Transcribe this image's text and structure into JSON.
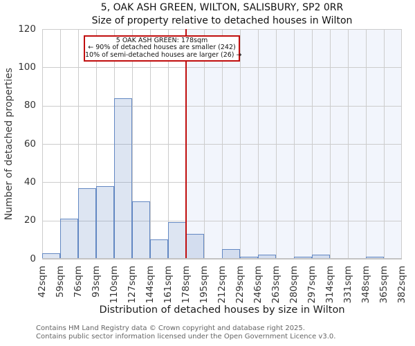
{
  "chart_data": {
    "type": "bar",
    "title": "5, OAK ASH GREEN, WILTON, SALISBURY, SP2 0RR",
    "subtitle": "Size of property relative to detached houses in Wilton",
    "xlabel": "Distribution of detached houses by size in Wilton",
    "ylabel": "Number of detached properties",
    "ylim": [
      0,
      120
    ],
    "yticks": [
      0,
      20,
      40,
      60,
      80,
      100,
      120
    ],
    "grid": true,
    "bin_edge_labels": [
      "42sqm",
      "59sqm",
      "76sqm",
      "93sqm",
      "110sqm",
      "127sqm",
      "144sqm",
      "161sqm",
      "178sqm",
      "195sqm",
      "212sqm",
      "229sqm",
      "246sqm",
      "263sqm",
      "280sqm",
      "297sqm",
      "314sqm",
      "331sqm",
      "348sqm",
      "365sqm",
      "382sqm"
    ],
    "values": [
      3,
      21,
      37,
      38,
      84,
      30,
      10,
      19,
      13,
      0,
      5,
      1,
      2,
      0,
      1,
      2,
      0,
      0,
      1,
      0
    ],
    "marker": {
      "value_label": "178sqm",
      "edge_index": 8,
      "shaded_side": "right"
    },
    "annotation": {
      "line1": "5 OAK ASH GREEN: 178sqm",
      "line2": "← 90% of detached houses are smaller (242)",
      "line3": "10% of semi-detached houses are larger (26) →"
    }
  },
  "footer": {
    "line1": "Contains HM Land Registry data © Crown copyright and database right 2025.",
    "line2": "Contains public sector information licensed under the Open Government Licence v3.0."
  },
  "colors": {
    "bar_fill": "rgba(99,136,195,0.22)",
    "bar_border": "#6287c2",
    "marker_red": "#c00d0d",
    "shade": "#f2f5fc",
    "gridline": "#cccccc",
    "axis_line": "#c3c3c3",
    "tick_text": "#333333",
    "footer_text": "#646464"
  }
}
